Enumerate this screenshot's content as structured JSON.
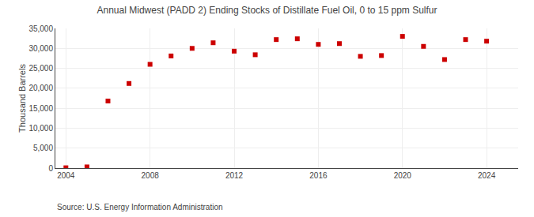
{
  "chart_data": {
    "type": "scatter",
    "title": "Annual Midwest (PADD 2) Ending Stocks of Distillate Fuel Oil, 0 to 15 ppm Sulfur",
    "ylabel": "Thousand Barrels",
    "annotations": [
      "Source: U.S. Energy Information Administration"
    ],
    "x": [
      2004,
      2005,
      2006,
      2007,
      2008,
      2009,
      2010,
      2011,
      2012,
      2013,
      2014,
      2015,
      2016,
      2017,
      2018,
      2019,
      2020,
      2021,
      2022,
      2023,
      2024
    ],
    "values": [
      80,
      300,
      16800,
      21200,
      26000,
      28100,
      30000,
      31400,
      29300,
      28400,
      32200,
      32400,
      31000,
      31200,
      28000,
      28200,
      33000,
      30500,
      27200,
      32200,
      31800
    ],
    "color": "#cc0000",
    "marker": "square",
    "xlim": [
      2003.5,
      2025.5
    ],
    "ylim": [
      0,
      35000
    ],
    "xticks": [
      2004,
      2008,
      2012,
      2016,
      2020,
      2024
    ],
    "yticks": [
      0,
      {
        "value": 5000,
        "label": "5,000"
      },
      {
        "value": 10000,
        "label": "10,000"
      },
      {
        "value": 15000,
        "label": "15,000"
      },
      {
        "value": 20000,
        "label": "20,000"
      },
      {
        "value": 25000,
        "label": "25,000"
      },
      {
        "value": 30000,
        "label": "30,000"
      },
      {
        "value": 35000,
        "label": "35,000"
      }
    ],
    "grid": true
  }
}
